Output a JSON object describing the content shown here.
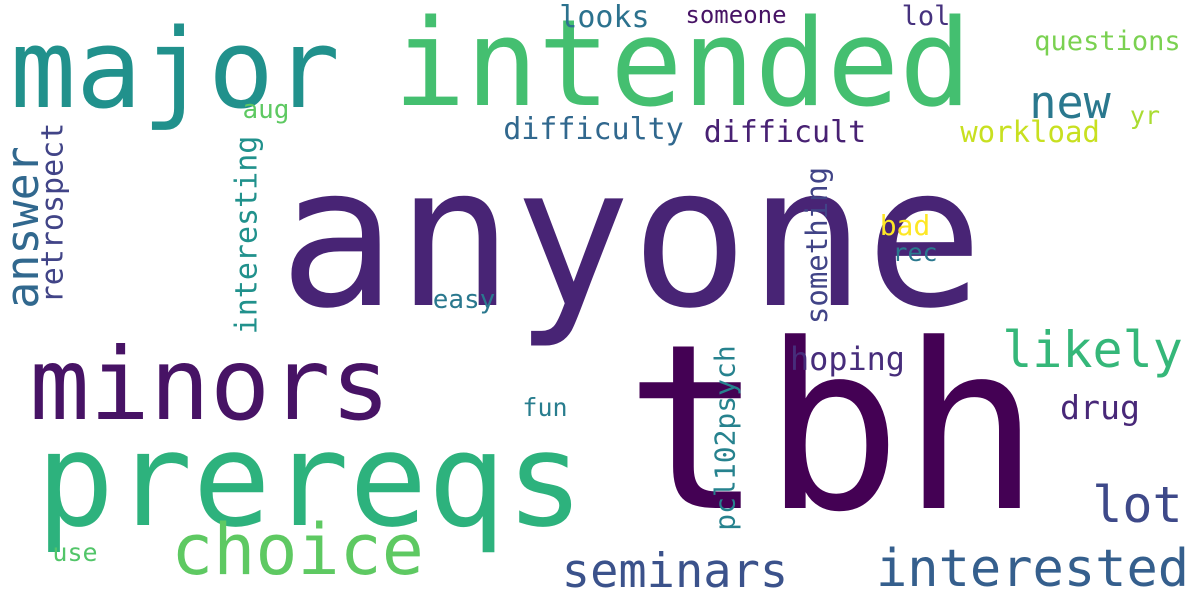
{
  "words": [
    {
      "text": "anyone",
      "color": "#482475"
    },
    {
      "text": "tbh",
      "color": "#440154"
    },
    {
      "text": "intended",
      "color": "#44bf70"
    },
    {
      "text": "major",
      "color": "#21918c"
    },
    {
      "text": "minors",
      "color": "#471365"
    },
    {
      "text": "prereqs",
      "color": "#2db27d"
    },
    {
      "text": "choice",
      "color": "#5ec962"
    },
    {
      "text": "answer",
      "color": "#31688e"
    },
    {
      "text": "retrospect",
      "color": "#414487"
    },
    {
      "text": "interesting",
      "color": "#21918c"
    },
    {
      "text": "seminars",
      "color": "#3b528b"
    },
    {
      "text": "interested",
      "color": "#355f8d"
    },
    {
      "text": "likely",
      "color": "#35b779"
    },
    {
      "text": "lot",
      "color": "#3e4989"
    },
    {
      "text": "new",
      "color": "#2a788e"
    },
    {
      "text": "hoping",
      "color": "#472d7b"
    },
    {
      "text": "drug",
      "color": "#482878"
    },
    {
      "text": "pcl102psych",
      "color": "#26828e"
    },
    {
      "text": "something",
      "color": "#414487"
    },
    {
      "text": "difficulty",
      "color": "#31688e"
    },
    {
      "text": "difficult",
      "color": "#482173"
    },
    {
      "text": "workload",
      "color": "#c8e020"
    },
    {
      "text": "questions",
      "color": "#7ad151"
    },
    {
      "text": "looks",
      "color": "#2c728e"
    },
    {
      "text": "someone",
      "color": "#471365"
    },
    {
      "text": "lol",
      "color": "#46327e"
    },
    {
      "text": "yr",
      "color": "#aadc32"
    },
    {
      "text": "bad",
      "color": "#fde725"
    },
    {
      "text": "rec",
      "color": "#2a788e"
    },
    {
      "text": "easy",
      "color": "#2a788e"
    },
    {
      "text": "fun",
      "color": "#287d8e"
    },
    {
      "text": "aug",
      "color": "#5ec962"
    },
    {
      "text": "use",
      "color": "#52c569"
    }
  ]
}
